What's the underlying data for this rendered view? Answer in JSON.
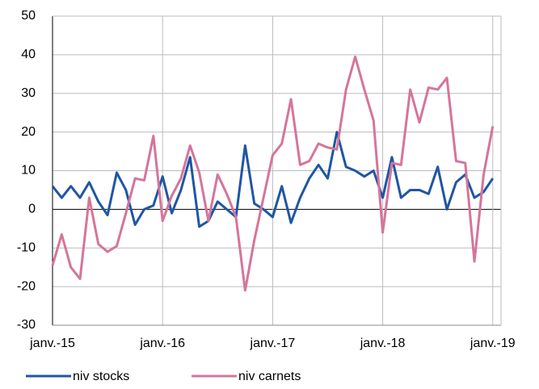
{
  "chart_data": {
    "type": "line",
    "categories": [
      "janv.-15",
      null,
      null,
      null,
      null,
      null,
      null,
      null,
      null,
      null,
      null,
      null,
      "janv.-16",
      null,
      null,
      null,
      null,
      null,
      null,
      null,
      null,
      null,
      null,
      null,
      "janv.-17",
      null,
      null,
      null,
      null,
      null,
      null,
      null,
      null,
      null,
      null,
      null,
      "janv.-18",
      null,
      null,
      null,
      null,
      null,
      null,
      null,
      null,
      null,
      null,
      null,
      "janv.-19"
    ],
    "series": [
      {
        "name": "niv stocks",
        "color": "#1f56a3",
        "values": [
          6,
          3,
          6,
          3,
          7,
          2,
          -1.5,
          9.5,
          5,
          -4,
          0,
          1,
          8.5,
          -1,
          5,
          13.5,
          -4.5,
          -3,
          2,
          0,
          -2,
          16.5,
          1.5,
          0,
          -2,
          6,
          -3.5,
          3,
          8,
          11.5,
          8,
          20,
          11,
          10,
          8.5,
          10,
          3,
          13.5,
          3,
          5,
          5,
          4,
          11,
          0,
          7,
          9,
          3,
          4.5,
          8
        ]
      },
      {
        "name": "niv carnets",
        "color": "#d5759b",
        "values": [
          -14.5,
          -6.5,
          -15,
          -18,
          3,
          -9,
          -11,
          -9.5,
          -1,
          8,
          7.5,
          19,
          -3,
          3.5,
          8,
          16.5,
          9.5,
          -3,
          9,
          4,
          -2,
          -21,
          -8,
          3,
          14,
          17,
          28.5,
          11.5,
          12.5,
          17,
          16,
          15.5,
          31,
          39.5,
          31,
          23,
          -6,
          12,
          11.5,
          31,
          22.5,
          31.5,
          31,
          34,
          12.5,
          12,
          -13.5,
          9,
          21.5
        ]
      }
    ],
    "ylim": [
      -30,
      50
    ],
    "yticks": [
      -30,
      -20,
      -10,
      0,
      10,
      20,
      30,
      40,
      50
    ],
    "grid": true
  }
}
